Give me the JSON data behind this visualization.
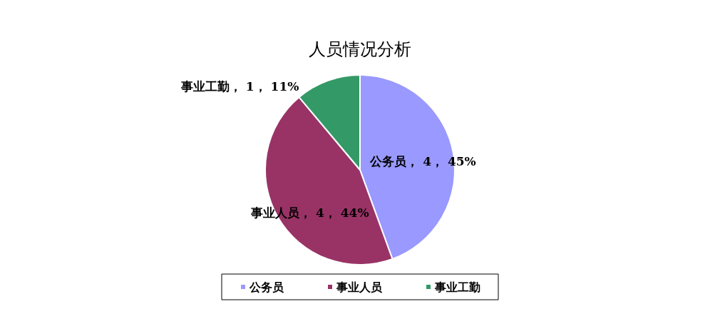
{
  "chart_data": {
    "type": "pie",
    "title": "人员情况分析",
    "categories": [
      "公务员",
      "事业人员",
      "事业工勤"
    ],
    "values": [
      4,
      4,
      1
    ],
    "value_labels": [
      "， 4， 45%",
      "， 4， 44%",
      "， 1， 11%"
    ],
    "colors": [
      "#9999ff",
      "#993366",
      "#339966"
    ],
    "legend": "bottom"
  }
}
